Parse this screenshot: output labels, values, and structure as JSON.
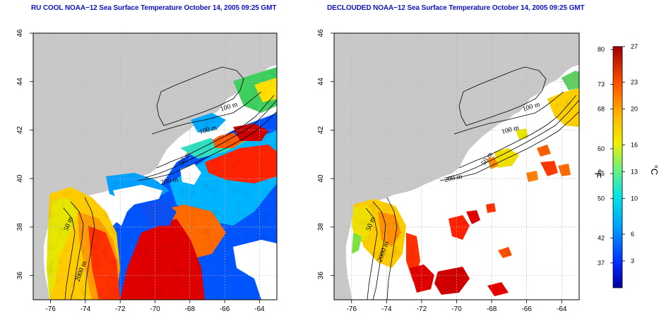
{
  "titles": {
    "left": "RU COOL NOAA−12 Sea Surface Temperature October 14, 2005 09:25 GMT",
    "right": "DECLOUDED NOAA−12 Sea Surface Temperature October 14, 2005 09:25 GMT"
  },
  "axes": {
    "lon_ticks": [
      -76,
      -74,
      -72,
      -70,
      -68,
      -66,
      -64
    ],
    "lon_labels": [
      "-76",
      "-74",
      "-72",
      "-70",
      "-68",
      "-66",
      "-64"
    ],
    "lat_ticks": [
      36,
      38,
      40,
      42,
      44,
      46
    ],
    "lat_labels": [
      "36",
      "38",
      "40",
      "42",
      "44",
      "46"
    ],
    "lon_range": [
      -77,
      -63
    ],
    "lat_range": [
      35,
      46
    ]
  },
  "contours": {
    "labels": [
      "100 m",
      "100 m",
      "50 m",
      "200 m",
      "50 m",
      "2000 m"
    ]
  },
  "colorbar": {
    "unit_f": "°F",
    "unit_c": "°C",
    "celsius_range": [
      0,
      27
    ],
    "c_labels": [
      "27",
      "23",
      "20",
      "16",
      "13",
      "10",
      "6",
      "3"
    ],
    "c_values": [
      27,
      23,
      20,
      16,
      13,
      10,
      6,
      3
    ],
    "f_labels": [
      "80",
      "73",
      "68",
      "60",
      "55",
      "50",
      "42",
      "37"
    ],
    "f_values": [
      80,
      73,
      68,
      60,
      55,
      50,
      42,
      37
    ]
  },
  "colors": {
    "land": "#c8c8c8",
    "ocean": "#ffffff",
    "title": "#1010c8",
    "grid": "#b4b4b4"
  }
}
